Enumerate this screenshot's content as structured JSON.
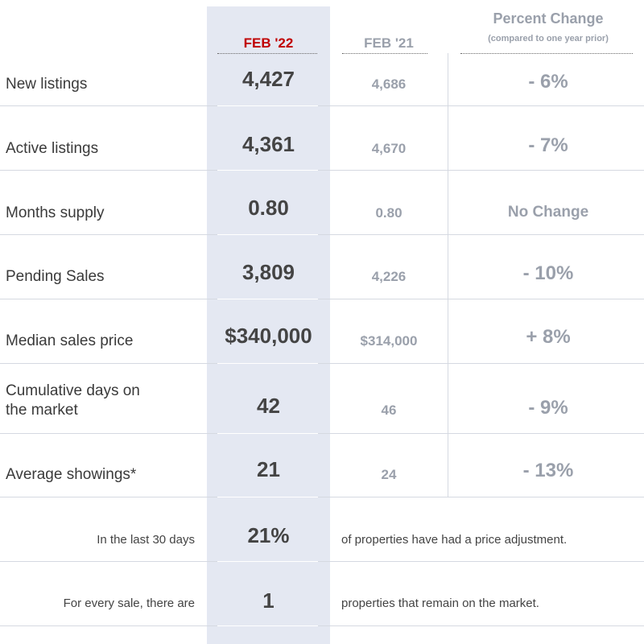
{
  "header": {
    "col_current": "FEB '22",
    "col_prior": "FEB '21",
    "col_change": "Percent Change",
    "col_change_sub": "(compared to one year prior)"
  },
  "rows": [
    {
      "label": "New listings",
      "current": "4,427",
      "prior": "4,686",
      "change": "- 6%"
    },
    {
      "label": "Active listings",
      "current": "4,361",
      "prior": "4,670",
      "change": "- 7%"
    },
    {
      "label": "Months supply",
      "current": "0.80",
      "prior": "0.80",
      "change": "No Change"
    },
    {
      "label": "Pending Sales",
      "current": "3,809",
      "prior": "4,226",
      "change": "- 10%"
    },
    {
      "label": "Median sales price",
      "current": "$340,000",
      "prior": "$314,000",
      "change": "+ 8%"
    },
    {
      "label_line1": "Cumulative days on",
      "label_line2": "the market",
      "current": "42",
      "prior": "46",
      "change": "- 9%"
    },
    {
      "label": "Average showings*",
      "current": "21",
      "prior": "24",
      "change": "- 13%"
    }
  ],
  "footer": [
    {
      "left": "In the last 30 days",
      "value": "21%",
      "right": "of properties have had a price adjustment."
    },
    {
      "left": "For every sale, there are",
      "value": "1",
      "right": "properties that remain on the market."
    }
  ]
}
